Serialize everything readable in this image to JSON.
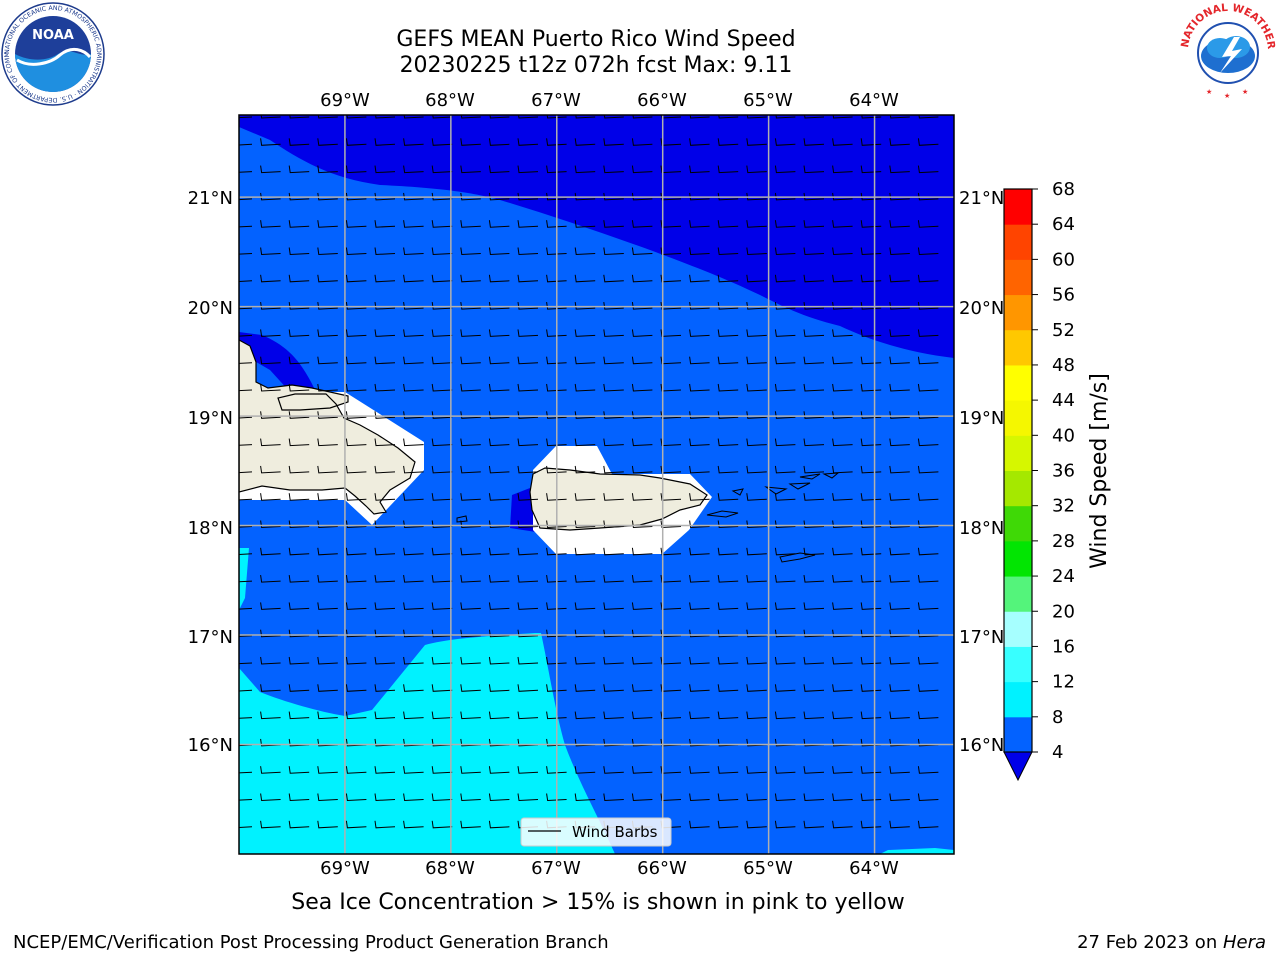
{
  "title": {
    "line1": "GEFS MEAN Puerto Rico Wind Speed",
    "line2": "20230225 t12z 072h fcst   Max: 9.11"
  },
  "logos": {
    "noaa": {
      "text": "NOAA",
      "ring_text": "NATIONAL OCEANIC AND ATMOSPHERIC ADMINISTRATION · U.S. DEPARTMENT OF COMMERCE"
    },
    "nws": {
      "ring_text": "NATIONAL WEATHER SERVICE"
    }
  },
  "map": {
    "lon_labels": [
      "69°W",
      "68°W",
      "67°W",
      "66°W",
      "65°W",
      "64°W"
    ],
    "lat_labels": [
      "21°N",
      "20°N",
      "19°N",
      "18°N",
      "17°N",
      "16°N"
    ],
    "lon_range": [
      -70.0,
      -63.25
    ],
    "lat_range": [
      15.0,
      21.75
    ],
    "grid": true,
    "legend": {
      "label": "Wind Barbs",
      "placement": "bottom-center"
    },
    "fill_colors": {
      "land": "#efedde",
      "masked": "#ffffff"
    }
  },
  "colorbar": {
    "label": "Wind Speed [m/s]",
    "ticks": [
      "68",
      "64",
      "60",
      "56",
      "52",
      "48",
      "44",
      "40",
      "36",
      "32",
      "28",
      "24",
      "20",
      "16",
      "12",
      "8",
      "4"
    ],
    "bounds": [
      4,
      8,
      12,
      16,
      20,
      24,
      28,
      32,
      36,
      40,
      44,
      48,
      52,
      56,
      60,
      64,
      68
    ],
    "colors": [
      "#0362ff",
      "#00f2ff",
      "#38ffff",
      "#a6ffff",
      "#54f47b",
      "#02e502",
      "#3fd906",
      "#a5e800",
      "#d6f700",
      "#f5f700",
      "#ffff00",
      "#ffc800",
      "#ff9600",
      "#ff6400",
      "#ff4400",
      "#ff0000"
    ],
    "under_color": "#0000e8"
  },
  "caption": "Sea Ice Concentration > 15% is shown in pink to yellow",
  "footer": {
    "left": "NCEP/EMC/Verification Post Processing Product Generation Branch",
    "date": "27 Feb 2023 on ",
    "machine": "Hera"
  }
}
